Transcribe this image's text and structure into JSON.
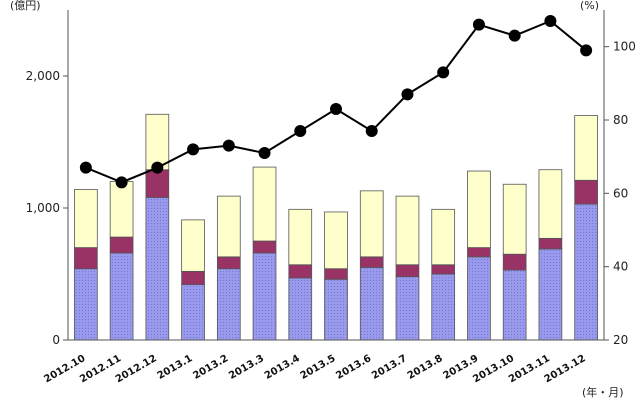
{
  "chart_data": {
    "type": "bar",
    "stacked": true,
    "categories": [
      "2012.10",
      "2012.11",
      "2012.12",
      "2013.1",
      "2013.2",
      "2013.3",
      "2013.4",
      "2013.5",
      "2013.6",
      "2013.7",
      "2013.8",
      "2013.9",
      "2013.10",
      "2013.11",
      "2013.12"
    ],
    "series": [
      {
        "color": "#9999ee",
        "pattern": "dotted",
        "values": [
          540,
          660,
          1080,
          420,
          540,
          660,
          470,
          460,
          550,
          480,
          500,
          630,
          530,
          690,
          1030
        ]
      },
      {
        "color": "#993366",
        "values": [
          160,
          120,
          210,
          100,
          90,
          90,
          100,
          80,
          80,
          90,
          70,
          70,
          120,
          80,
          180
        ]
      },
      {
        "color": "#ffffcc",
        "values": [
          440,
          420,
          420,
          390,
          460,
          560,
          420,
          430,
          500,
          520,
          420,
          580,
          530,
          520,
          490
        ]
      }
    ],
    "line": {
      "axis": "right",
      "color": "#000000",
      "values": [
        67,
        63,
        67,
        72,
        73,
        71,
        77,
        83,
        77,
        87,
        93,
        106,
        103,
        107,
        99
      ]
    },
    "left_axis": {
      "ylim": [
        0,
        2500
      ],
      "ticks": [
        "0",
        "1,000",
        "2,000"
      ],
      "tick_values": [
        0,
        1000,
        2000
      ],
      "unit_label": "(億円)"
    },
    "right_axis": {
      "ylim": [
        20,
        110
      ],
      "ticks": [
        "20",
        "40",
        "60",
        "80",
        "100"
      ],
      "tick_values": [
        20,
        40,
        60,
        80,
        100
      ],
      "unit_label": "(%)"
    },
    "x_unit_label": "(年・月)"
  }
}
